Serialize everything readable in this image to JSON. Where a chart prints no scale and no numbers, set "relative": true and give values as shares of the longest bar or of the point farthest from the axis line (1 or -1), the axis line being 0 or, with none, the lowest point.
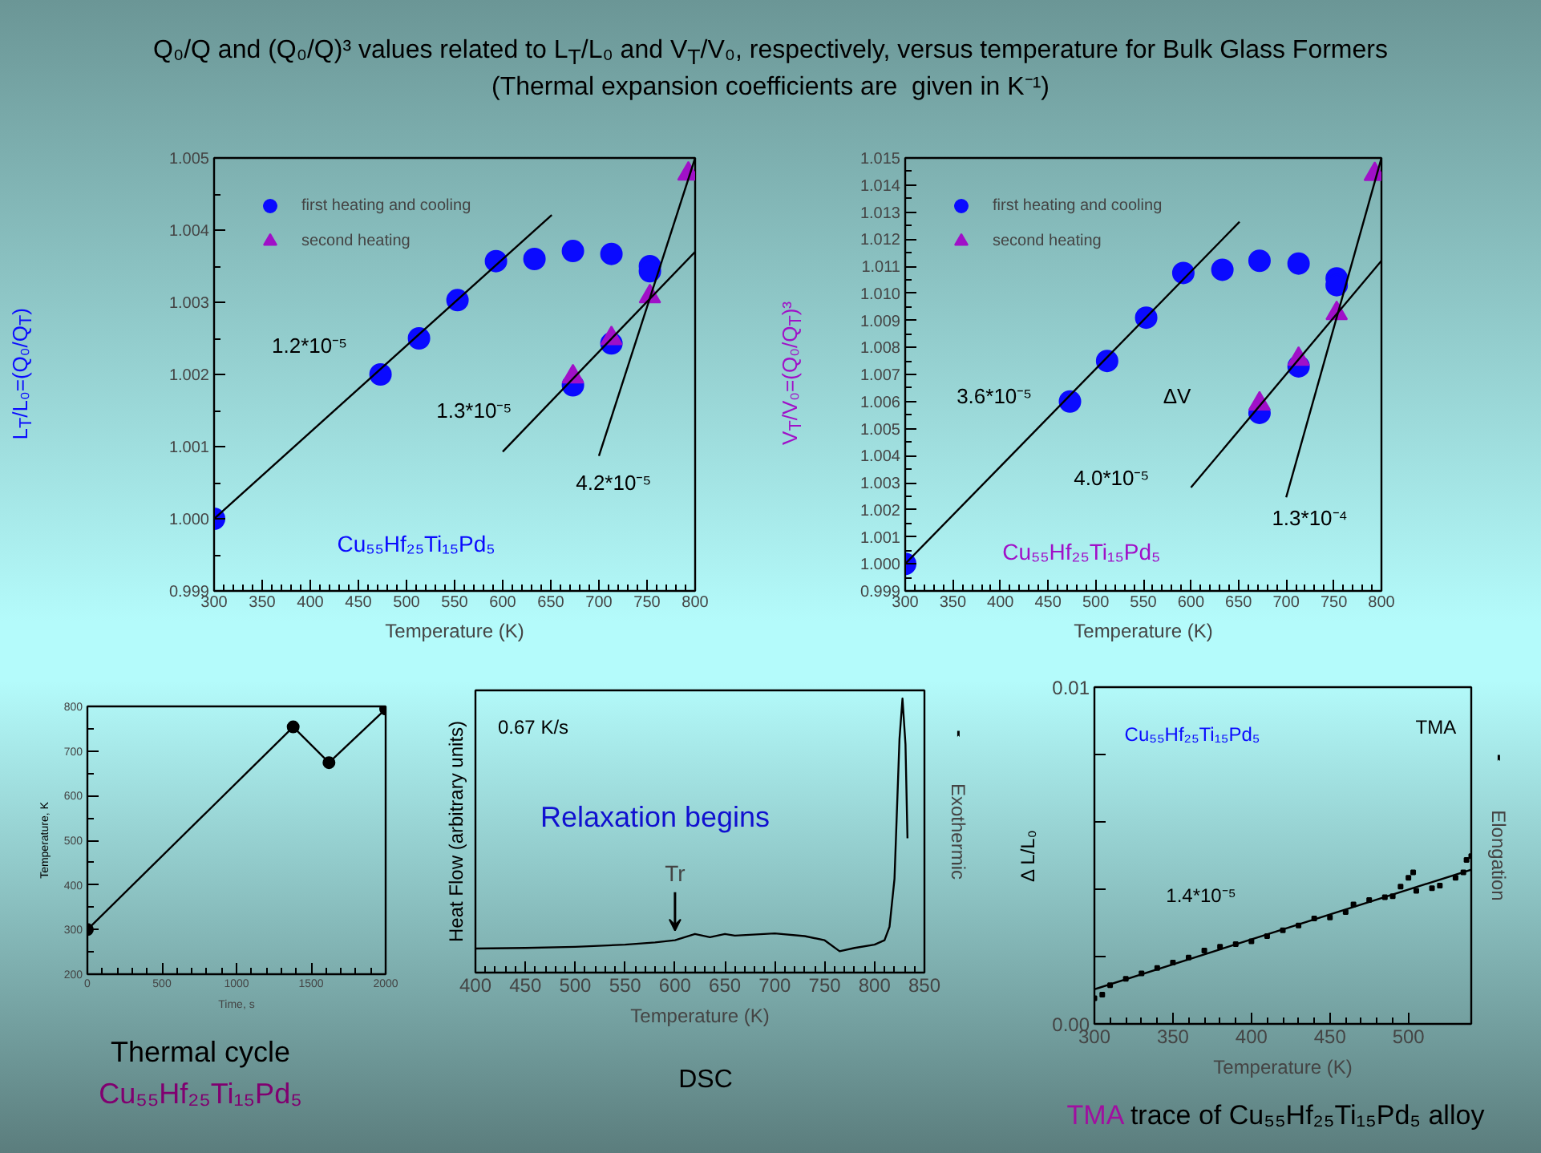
{
  "chart_data": [
    {
      "type": "scatter",
      "title": "Q₀/Q and (Q₀/Q)³ values related to L$_{T}$/L₀ and V$_{T}$/V₀, respectively, versus temperature for Bulk Glass Formers",
      "subtitle": "(Thermal expansion coefficients are  given in K⁻¹)",
      "xlabel": "Temperature (K)",
      "ylabel": "L$_{T}$/L₀=(Q₀/Q$_{T}$)",
      "xlim": [
        300,
        800
      ],
      "ylim": [
        0.999,
        1.005
      ],
      "xticks": [
        300,
        350,
        400,
        450,
        500,
        550,
        600,
        650,
        700,
        750,
        800
      ],
      "yticks": [
        0.999,
        {
          "value": 1.0,
          "label": "1.000"
        },
        1.001,
        1.002,
        1.003,
        1.004,
        1.005
      ],
      "legend": "top left",
      "series": [
        {
          "type": "scatter",
          "name": "first heating and cooling",
          "marker": "circle",
          "color": "#0a0aff",
          "x": [
            300,
            473,
            513,
            553,
            593,
            633,
            673,
            713,
            753,
            753,
            673,
            713
          ],
          "values": [
            1.0,
            1.002,
            1.0025,
            1.00303,
            1.00357,
            1.0036,
            1.00371,
            1.00367,
            1.0035,
            1.00343,
            1.00185,
            1.00243
          ]
        },
        {
          "type": "scatter",
          "name": "second heating",
          "marker": "triangle",
          "color": "#a010c8",
          "x": [
            673,
            713,
            753,
            793
          ],
          "values": [
            1.00197,
            1.0025,
            1.00308,
            1.00478
          ]
        },
        {
          "type": "line",
          "color": "#000000",
          "x": [
            300,
            651
          ],
          "values": [
            1.0,
            1.00421
          ]
        },
        {
          "type": "line",
          "color": "#000000",
          "x": [
            600,
            800
          ],
          "values": [
            1.00093,
            1.0037
          ]
        },
        {
          "type": "line",
          "color": "#000000",
          "x": [
            700,
            800
          ],
          "values": [
            1.00087,
            1.005
          ]
        }
      ],
      "annotations": [
        "1.2*10⁻⁵",
        "1.3*10⁻⁵",
        "4.2*10⁻⁵",
        "Cu₅₅Hf₂₅Ti₁₅Pd₅"
      ]
    },
    {
      "type": "scatter",
      "xlabel": "Temperature (K)",
      "ylabel": "V$_{T}$/V₀=(Q₀/Q$_{T}$)³",
      "xlim": [
        300,
        800
      ],
      "ylim": [
        0.999,
        1.015
      ],
      "xticks": [
        300,
        350,
        400,
        450,
        500,
        550,
        600,
        650,
        700,
        750,
        800
      ],
      "yticks": [
        0.999,
        {
          "value": 1.0,
          "label": "1.000"
        },
        1.001,
        1.002,
        1.003,
        1.004,
        1.005,
        1.006,
        1.007,
        1.008,
        1.009,
        {
          "value": 1.01,
          "label": "1.010"
        },
        1.011,
        1.012,
        1.013,
        1.014,
        1.015
      ],
      "legend": "top left",
      "series": [
        {
          "type": "scatter",
          "name": "first heating and cooling",
          "marker": "circle",
          "color": "#0a0aff",
          "x": [
            300,
            473,
            512,
            553,
            592,
            633,
            672,
            713,
            753,
            753,
            672,
            713
          ],
          "values": [
            1.0,
            1.006,
            1.0075,
            1.0091,
            1.01075,
            1.01087,
            1.0112,
            1.0111,
            1.01055,
            1.0103,
            1.00558,
            1.0073
          ]
        },
        {
          "type": "scatter",
          "name": "second heating",
          "marker": "triangle",
          "color": "#a010c8",
          "x": [
            672,
            713,
            753,
            793
          ],
          "values": [
            1.00592,
            1.00757,
            1.00926,
            1.0144
          ]
        },
        {
          "type": "line",
          "color": "#000000",
          "x": [
            300,
            651
          ],
          "values": [
            1.0,
            1.01264
          ]
        },
        {
          "type": "line",
          "color": "#000000",
          "x": [
            600,
            800
          ],
          "values": [
            1.00282,
            1.0112
          ]
        },
        {
          "type": "line",
          "color": "#000000",
          "x": [
            700,
            800
          ],
          "values": [
            1.00246,
            1.015
          ]
        }
      ],
      "annotations": [
        "3.6*10⁻⁵",
        "4.0*10⁻⁵",
        "1.3*10⁻⁴",
        "ΔV",
        "Cu₅₅Hf₂₅Ti₁₅Pd₅"
      ]
    },
    {
      "type": "line",
      "xlabel": "Time, s",
      "ylabel": "Temperature, K",
      "x": [
        0,
        1380,
        1620,
        2000
      ],
      "values": [
        300,
        754,
        674,
        794
      ],
      "color": "#000000",
      "marker": "circle",
      "xlim": [
        0,
        2000
      ],
      "ylim": [
        200,
        800
      ],
      "xticks": [
        0,
        500,
        1000,
        1500,
        2000
      ],
      "yticks": [
        200,
        300,
        400,
        500,
        600,
        700,
        800
      ],
      "annotations": [
        "Thermal cycle",
        "Cu₅₅Hf₂₅Ti₁₅Pd₅"
      ]
    },
    {
      "type": "line",
      "relative": true,
      "xlabel": "Temperature (K)",
      "ylabel": "Heat Flow (arbitrary units)",
      "x": [
        400,
        450,
        500,
        550,
        580,
        600,
        620,
        635,
        650,
        660,
        700,
        730,
        750,
        765,
        780,
        800,
        810,
        815,
        820,
        825,
        828,
        831,
        833
      ],
      "values": [
        0.088,
        0.09,
        0.094,
        0.102,
        0.11,
        0.118,
        0.141,
        0.129,
        0.141,
        0.135,
        0.143,
        0.133,
        0.118,
        0.078,
        0.09,
        0.102,
        0.118,
        0.167,
        0.343,
        0.853,
        1.0,
        0.833,
        0.49
      ],
      "color": "#000000",
      "xlim": [
        400,
        850
      ],
      "xticks": [
        400,
        450,
        500,
        550,
        600,
        650,
        700,
        750,
        800,
        850
      ],
      "tick_labels": "x",
      "annotations": [
        "0.67 K/s",
        "Relaxation begins",
        {
          "text": "Tr",
          "x": 600,
          "y": 0.118
        },
        "Exothermic",
        "DSC"
      ]
    },
    {
      "type": "scatter",
      "xlabel": "Temperature (K)",
      "ylabel": "Δ L/L₀",
      "xlim": [
        300,
        540
      ],
      "ylim": [
        0,
        0.01
      ],
      "xticks": [
        300,
        350,
        400,
        450,
        500
      ],
      "yticks": [
        {
          "value": 0,
          "label": "0.00"
        },
        {
          "value": 0.002,
          "label": null
        },
        {
          "value": 0.004,
          "label": null
        },
        {
          "value": 0.006,
          "label": null
        },
        {
          "value": 0.008,
          "label": null
        },
        {
          "value": 0.01,
          "label": "0.01"
        }
      ],
      "series": [
        {
          "type": "scatter",
          "marker": "square",
          "color": "#000000",
          "x": [
            300,
            305,
            310,
            320,
            330,
            340,
            350,
            360,
            370,
            380,
            390,
            400,
            410,
            420,
            430,
            440,
            450,
            460,
            465,
            475,
            485,
            490,
            495,
            500,
            503,
            505,
            515,
            520,
            530,
            535,
            537,
            540
          ],
          "values": [
            0.00076,
            0.00087,
            0.00115,
            0.00134,
            0.0015,
            0.00166,
            0.00182,
            0.00197,
            0.00218,
            0.00229,
            0.00237,
            0.00245,
            0.00261,
            0.00278,
            0.00292,
            0.00313,
            0.00316,
            0.00332,
            0.00355,
            0.00368,
            0.00376,
            0.00379,
            0.00408,
            0.00434,
            0.0045,
            0.00395,
            0.00403,
            0.00411,
            0.00434,
            0.0045,
            0.00487,
            0.00498
          ]
        },
        {
          "type": "line",
          "color": "#000000",
          "x": [
            300,
            540
          ],
          "values": [
            0.00103,
            0.00458
          ]
        }
      ],
      "annotations": [
        "Cu₅₅Hf₂₅Ti₁₅Pd₅",
        "TMA",
        "1.4*10⁻⁵",
        "Elongation",
        "TMA trace of Cu₅₅Hf₂₅Ti₁₅Pd₅ alloy"
      ]
    }
  ]
}
